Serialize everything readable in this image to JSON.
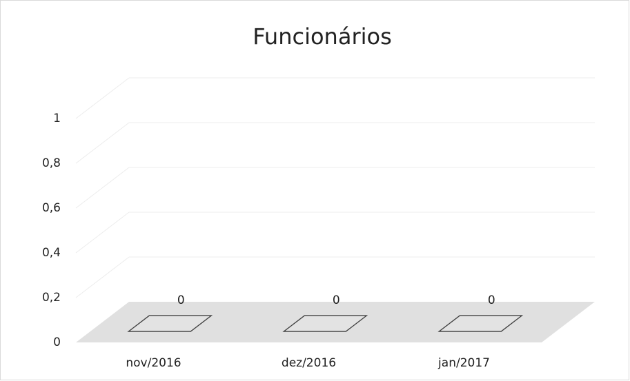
{
  "chart_data": {
    "type": "bar3d",
    "title": "Funcionários",
    "categories": [
      "nov/2016",
      "dez/2016",
      "jan/2017"
    ],
    "values": [
      0,
      0,
      0
    ],
    "color": "#e3e3e3",
    "ylim": [
      0,
      1
    ],
    "yticks": [
      0,
      {
        "value": 0.2,
        "label": "0,2"
      },
      {
        "value": 0.4,
        "label": "0,4"
      },
      {
        "value": 0.6,
        "label": "0,6"
      },
      {
        "value": 0.8,
        "label": "0,8"
      },
      1
    ],
    "grid": true
  }
}
